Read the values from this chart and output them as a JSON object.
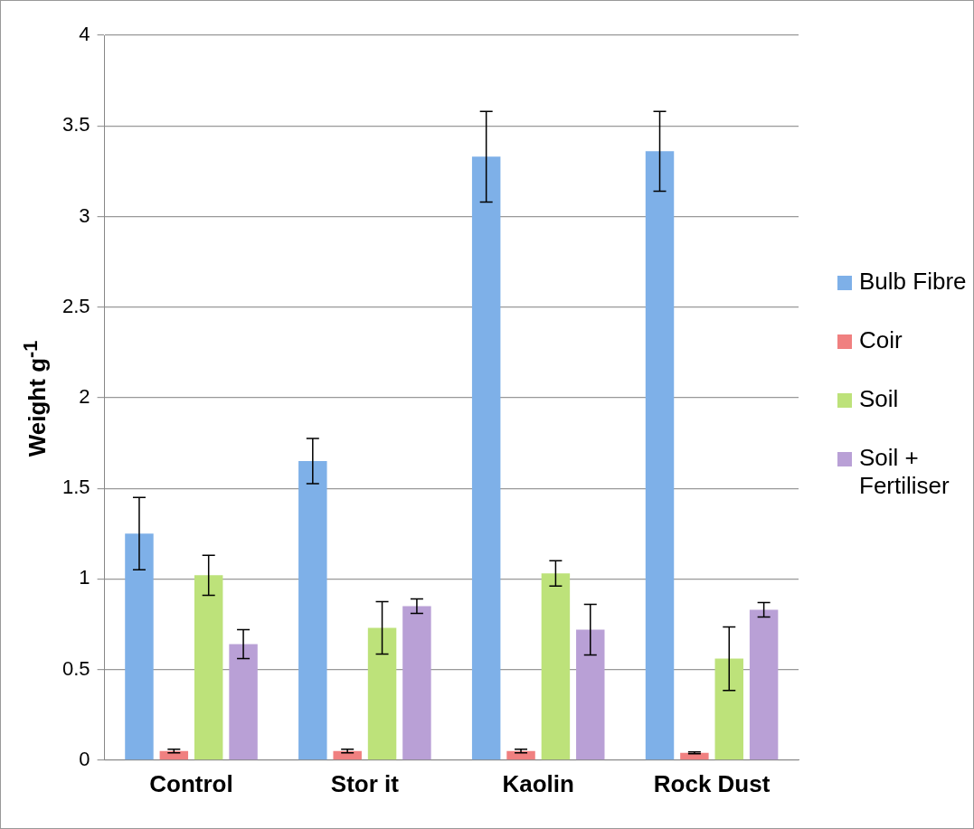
{
  "chart_data": {
    "type": "bar",
    "ylabel": "Weight g$^{-1}$",
    "categories": [
      "Control",
      "Stor it",
      "Kaolin",
      "Rock Dust"
    ],
    "series": [
      {
        "name": "Bulb Fibre",
        "color": "#7eb0e8",
        "values": [
          1.25,
          1.65,
          3.33,
          3.36
        ],
        "errors": [
          0.2,
          0.125,
          0.25,
          0.22
        ]
      },
      {
        "name": "Coir",
        "color": "#f08080",
        "values": [
          0.05,
          0.05,
          0.05,
          0.04
        ],
        "errors": [
          0.01,
          0.01,
          0.01,
          0.005
        ]
      },
      {
        "name": "Soil",
        "color": "#bde27a",
        "values": [
          1.02,
          0.73,
          1.03,
          0.56
        ],
        "errors": [
          0.11,
          0.145,
          0.07,
          0.175
        ]
      },
      {
        "name": "Soil + Fertiliser",
        "color": "#b9a0d6",
        "values": [
          0.64,
          0.85,
          0.72,
          0.83
        ],
        "errors": [
          0.08,
          0.04,
          0.14,
          0.04
        ]
      }
    ],
    "ylim": [
      0,
      4
    ],
    "yticks": [
      0,
      0.5,
      1,
      1.5,
      2,
      2.5,
      3,
      3.5,
      4
    ],
    "grid": "y",
    "legend": "right"
  }
}
